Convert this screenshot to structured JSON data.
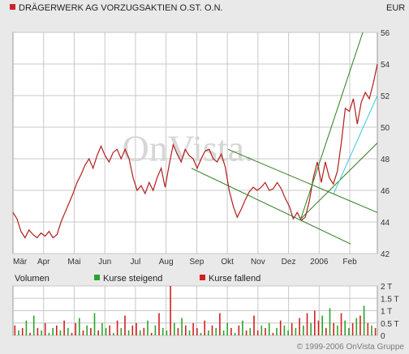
{
  "header": {
    "title": "DRÄGERWERK AG VORZUGSAKTIEN O.ST. O.N.",
    "currency": "EUR",
    "title_marker_color": "#c8262b"
  },
  "watermark": "OnVista.",
  "footer": "© 1999-2006 OnVista Gruppe",
  "colors": {
    "price_line": "#b31d1d",
    "channel": "#2e7d1e",
    "trend_light": "#38c8e0",
    "vol_up": "#2aa52a",
    "vol_down": "#d22020",
    "grid": "#c8c8c8",
    "plot_bg": "#ffffff"
  },
  "chart_data": [
    {
      "type": "line",
      "title": "DRÄGERWERK AG VORZUGSAKTIEN O.ST. O.N.",
      "ylabel": "EUR",
      "ylim": [
        42,
        56
      ],
      "y_ticks": [
        "42",
        "44",
        "46",
        "48",
        "50",
        "52",
        "54",
        "56"
      ],
      "x_ticks": [
        "Mär",
        "Apr",
        "Mai",
        "Jun",
        "Jul",
        "Aug",
        "Sep",
        "Okt",
        "Nov",
        "Dez",
        "2006",
        "Feb"
      ],
      "grid": true,
      "y_axis_side": "right",
      "series": [
        {
          "values": [
            44.6,
            44.2,
            43.4,
            43.0,
            43.5,
            43.2,
            43.0,
            43.3,
            43.1,
            43.4,
            43.0,
            43.2,
            44.0,
            44.6,
            45.2,
            45.8,
            46.5,
            47.0,
            47.6,
            48.0,
            47.4,
            48.2,
            48.8,
            48.2,
            47.8,
            48.4,
            48.6,
            48.0,
            48.6,
            48.0,
            46.8,
            46.0,
            46.3,
            45.8,
            46.5,
            46.0,
            46.8,
            47.4,
            46.2,
            47.6,
            48.9,
            48.3,
            47.8,
            48.6,
            48.2,
            48.0,
            47.4,
            48.0,
            48.5,
            48.6,
            48.0,
            47.8,
            48.3,
            47.5,
            46.0,
            45.0,
            44.3,
            44.8,
            45.4,
            45.9,
            46.2,
            46.0,
            46.2,
            46.5,
            46.0,
            46.1,
            46.5,
            46.1,
            45.5,
            45.0,
            44.2,
            44.6,
            44.1,
            44.3,
            45.3,
            46.8,
            47.8,
            46.5,
            47.8,
            46.8,
            46.4,
            47.2,
            49.0,
            51.2,
            51.0,
            51.8,
            50.2,
            51.6,
            52.2,
            51.8,
            52.8,
            54.0
          ],
          "color": "#b31d1d"
        }
      ],
      "trendlines": [
        {
          "from": [
            0.59,
            48.6
          ],
          "to": [
            1.0,
            44.6
          ],
          "color": "#2e7d1e"
        },
        {
          "from": [
            0.49,
            47.4
          ],
          "to": [
            0.927,
            42.6
          ],
          "color": "#2e7d1e"
        },
        {
          "from": [
            0.79,
            44.2
          ],
          "to": [
            0.96,
            56.0
          ],
          "color": "#2e7d1e"
        },
        {
          "from": [
            0.79,
            44.2
          ],
          "to": [
            1.0,
            49.0
          ],
          "color": "#2e7d1e"
        },
        {
          "from": [
            0.88,
            45.8
          ],
          "to": [
            1.0,
            52.0
          ],
          "color": "#38c8e0"
        }
      ],
      "annotations": [
        "OnVista."
      ]
    },
    {
      "type": "bar",
      "title": "Volumen",
      "ylim": [
        0,
        2
      ],
      "y_ticks": [
        "0",
        "0.5 T",
        "1 T",
        "1.5 T",
        "2 T"
      ],
      "y_unit": "T (thousand shares)",
      "grid": true,
      "legend": {
        "position": "top",
        "entries": [
          "Kurse steigend",
          "Kurse fallend"
        ]
      },
      "series": [
        {
          "name": "Volumen",
          "values": [
            0.4,
            0.2,
            0.3,
            0.6,
            0.1,
            0.8,
            0.3,
            0.2,
            0.5,
            0.1,
            0.3,
            0.4,
            0.2,
            0.6,
            0.3,
            0.1,
            0.5,
            0.7,
            0.2,
            0.4,
            0.3,
            0.9,
            0.2,
            0.5,
            0.3,
            0.4,
            0.1,
            0.6,
            0.3,
            0.8,
            0.2,
            0.4,
            0.5,
            0.2,
            0.3,
            0.6,
            0.1,
            0.4,
            0.9,
            0.3,
            0.2,
            2.0,
            0.5,
            0.3,
            0.7,
            0.4,
            0.2,
            0.5,
            0.3,
            0.1,
            0.6,
            0.2,
            0.4,
            0.3,
            0.9,
            0.2,
            0.5,
            0.3,
            0.1,
            0.4,
            0.6,
            0.2,
            0.3,
            0.8,
            0.2,
            0.4,
            0.3,
            0.5,
            0.1,
            0.3,
            0.6,
            0.4,
            0.2,
            0.5,
            0.3,
            0.7,
            0.4,
            0.9,
            0.5,
            1.0,
            0.6,
            0.8,
            0.3,
            1.1,
            0.5,
            0.4,
            0.9,
            0.6,
            0.3,
            0.5,
            0.7,
            0.8,
            1.2,
            0.5,
            0.4,
            0.3
          ],
          "direction": [
            "d",
            "u",
            "d",
            "u",
            "d",
            "u",
            "d",
            "u",
            "d",
            "u",
            "u",
            "d",
            "u",
            "d",
            "u",
            "d",
            "d",
            "u",
            "d",
            "u",
            "d",
            "u",
            "d",
            "u",
            "u",
            "d",
            "u",
            "d",
            "u",
            "d",
            "u",
            "d",
            "d",
            "u",
            "d",
            "u",
            "d",
            "u",
            "d",
            "u",
            "u",
            "d",
            "u",
            "d",
            "u",
            "d",
            "u",
            "d",
            "d",
            "u",
            "d",
            "u",
            "d",
            "u",
            "d",
            "u",
            "u",
            "d",
            "u",
            "d",
            "u",
            "d",
            "u",
            "d",
            "d",
            "u",
            "d",
            "u",
            "d",
            "u",
            "d",
            "u",
            "u",
            "d",
            "u",
            "d",
            "u",
            "d",
            "u",
            "d",
            "d",
            "u",
            "d",
            "u",
            "d",
            "u",
            "d",
            "u",
            "u",
            "d",
            "u",
            "d",
            "u",
            "d",
            "u",
            "d"
          ]
        }
      ]
    }
  ]
}
